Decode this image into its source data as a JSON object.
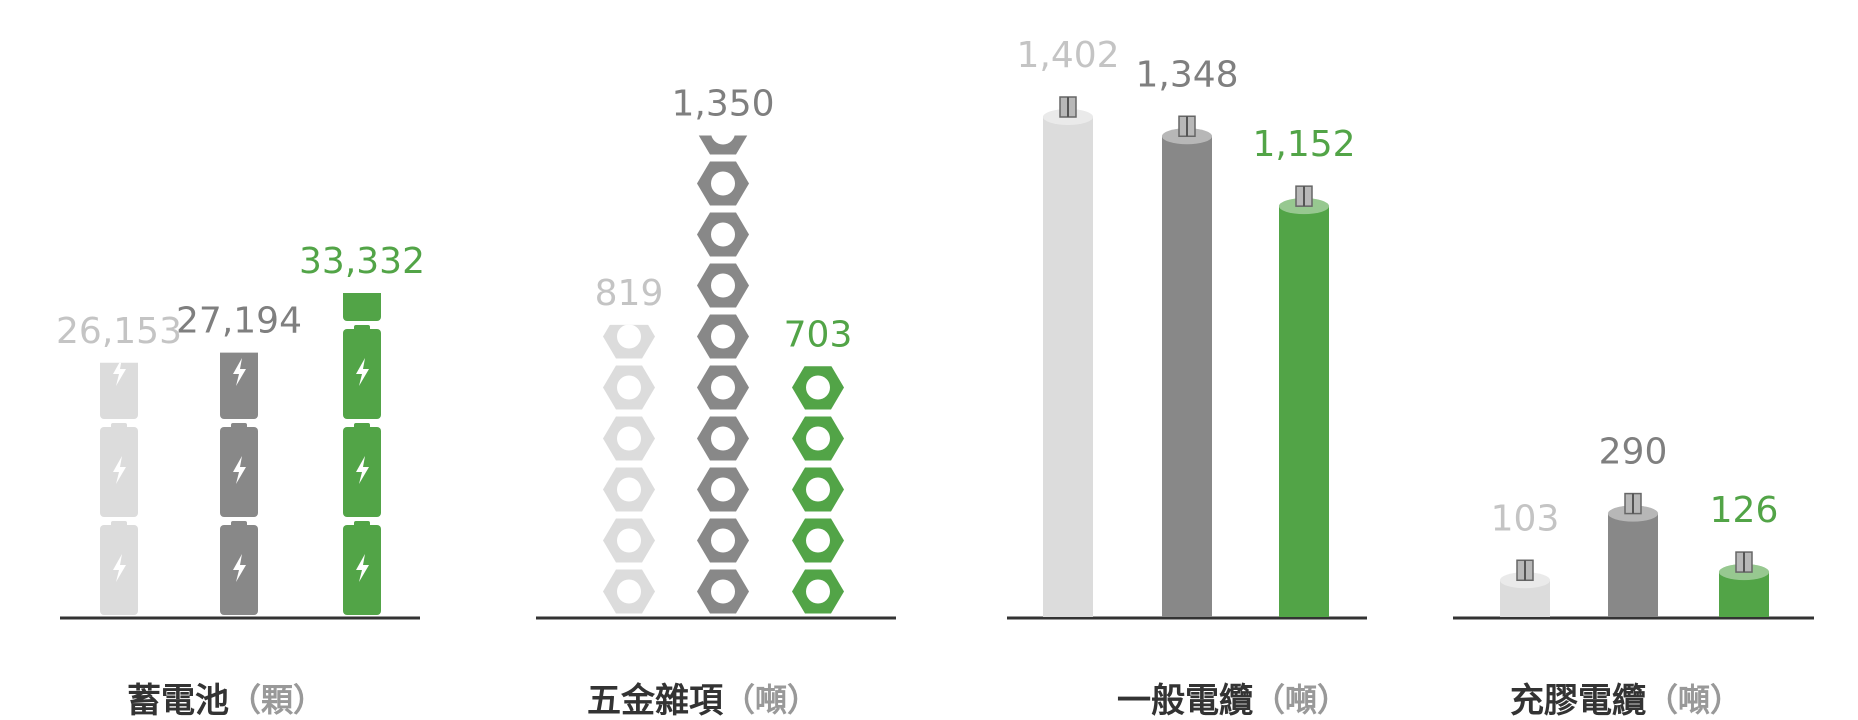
{
  "chart_data": [
    {
      "type": "bar",
      "icon": "battery",
      "title": "蓄電池",
      "unit": "（顆）",
      "values": [
        26153,
        27194,
        33332
      ],
      "value_labels": [
        "26,153",
        "27,194",
        "33,332"
      ],
      "colors": [
        "#dcdcdc",
        "#888888",
        "#52a447"
      ],
      "label_colors": [
        "#c4c4c4",
        "#7f7f7f",
        "#52a447"
      ]
    },
    {
      "type": "bar",
      "icon": "nut",
      "title": "五金雜項",
      "unit": "（噸）",
      "values": [
        819,
        1350,
        703
      ],
      "value_labels": [
        "819",
        "1,350",
        "703"
      ],
      "colors": [
        "#dcdcdc",
        "#888888",
        "#52a447"
      ],
      "label_colors": [
        "#c4c4c4",
        "#7f7f7f",
        "#52a447"
      ]
    },
    {
      "type": "bar",
      "icon": "cable",
      "title": "一般電纜",
      "unit": "（噸）",
      "values": [
        1402,
        1348,
        1152
      ],
      "value_labels": [
        "1,402",
        "1,348",
        "1,152"
      ],
      "colors": [
        "#dcdcdc",
        "#888888",
        "#52a447"
      ],
      "label_colors": [
        "#c4c4c4",
        "#7f7f7f",
        "#52a447"
      ]
    },
    {
      "type": "bar",
      "icon": "cable",
      "title": "充膠電纜",
      "unit": "（噸）",
      "values": [
        103,
        290,
        126
      ],
      "value_labels": [
        "103",
        "290",
        "126"
      ],
      "colors": [
        "#dcdcdc",
        "#888888",
        "#52a447"
      ],
      "label_colors": [
        "#c4c4c4",
        "#7f7f7f",
        "#52a447"
      ]
    }
  ]
}
